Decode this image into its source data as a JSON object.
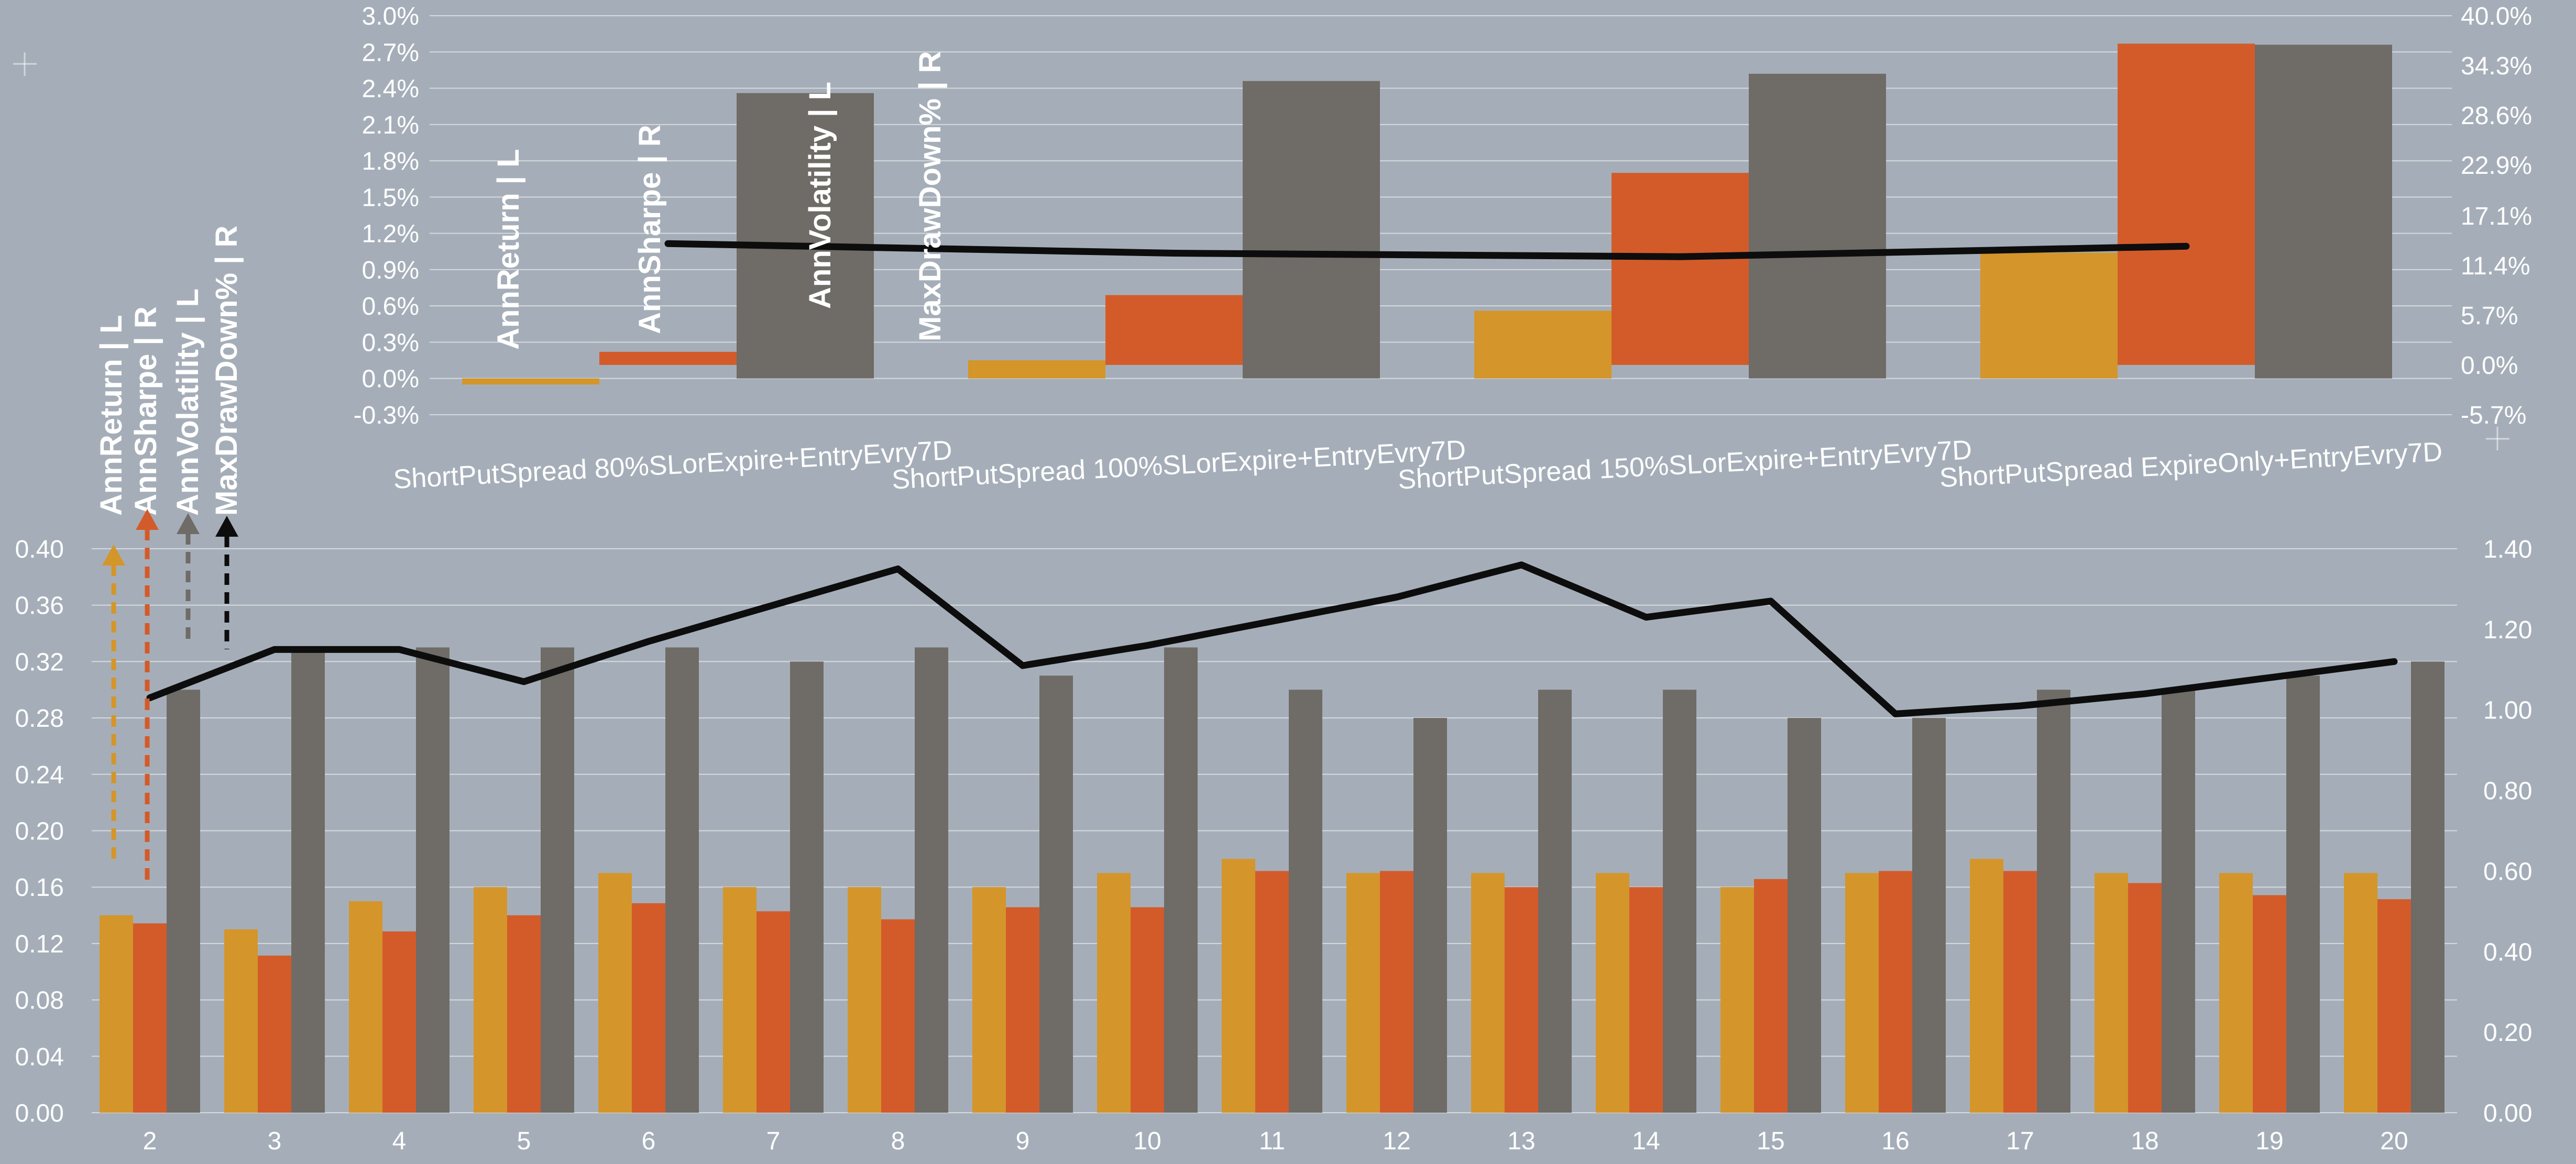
{
  "colors": {
    "background": "#a5aeb8",
    "ann_return": "#d4952a",
    "ann_sharpe": "#d35b2a",
    "ann_volatility": "#6f6b66",
    "max_drawdown": "#0d0d0d",
    "text": "#ffffff"
  },
  "chart_data": [
    {
      "type": "bar",
      "name": "top",
      "categories": [
        "ShortPutSpread 80%SLorExpire+EntryEvry7D",
        "ShortPutSpread 100%SLorExpire+EntryEvry7D",
        "ShortPutSpread 150%SLorExpire+EntryEvry7D",
        "ShortPutSpread ExpireOnly+EntryEvry7D"
      ],
      "left_axis": {
        "ticks": [
          "-0.3%",
          "0.0%",
          "0.3%",
          "0.6%",
          "0.9%",
          "1.2%",
          "1.5%",
          "1.8%",
          "2.1%",
          "2.4%",
          "2.7%",
          "3.0%"
        ],
        "range": [
          -0.3,
          3.0
        ]
      },
      "right_axis": {
        "ticks": [
          "-5.7%",
          "0.0%",
          "5.7%",
          "11.4%",
          "17.1%",
          "22.9%",
          "28.6%",
          "34.3%",
          "40.0%"
        ],
        "range": [
          -5.7,
          40.0
        ]
      },
      "series": [
        {
          "name": "AnnReturn | L",
          "axis": "left",
          "kind": "bar",
          "values": [
            -0.05,
            0.15,
            0.56,
            1.04
          ]
        },
        {
          "name": "AnnSharpe | R",
          "axis": "right",
          "kind": "bar",
          "values": [
            1.5,
            8.0,
            22.0,
            36.8
          ]
        },
        {
          "name": "AnnVolatility | L",
          "axis": "left",
          "kind": "bar",
          "values": [
            2.36,
            2.46,
            2.52,
            2.76
          ]
        },
        {
          "name": "MaxDrawDown% | R",
          "axis": "right",
          "kind": "line",
          "values": [
            13.9,
            12.8,
            12.4,
            13.6
          ]
        }
      ]
    },
    {
      "type": "bar",
      "name": "bottom",
      "categories": [
        "2",
        "3",
        "4",
        "5",
        "6",
        "7",
        "8",
        "9",
        "10",
        "11",
        "12",
        "13",
        "14",
        "15",
        "16",
        "17",
        "18",
        "19",
        "20"
      ],
      "left_axis": {
        "ticks": [
          "0.00",
          "0.04",
          "0.08",
          "0.12",
          "0.16",
          "0.20",
          "0.24",
          "0.28",
          "0.32",
          "0.36",
          "0.40"
        ],
        "range": [
          0,
          0.4
        ]
      },
      "right_axis": {
        "ticks": [
          "0.00",
          "0.20",
          "0.40",
          "0.60",
          "0.80",
          "1.00",
          "1.20",
          "1.40"
        ],
        "range": [
          0,
          1.4
        ]
      },
      "series": [
        {
          "name": "AnnReturn | L",
          "axis": "left",
          "kind": "bar",
          "values": [
            0.14,
            0.13,
            0.15,
            0.16,
            0.17,
            0.16,
            0.16,
            0.16,
            0.17,
            0.18,
            0.17,
            0.17,
            0.17,
            0.16,
            0.17,
            0.18,
            0.17,
            0.17,
            0.17
          ]
        },
        {
          "name": "AnnSharpe | R",
          "axis": "right",
          "kind": "bar",
          "values": [
            0.47,
            0.39,
            0.45,
            0.49,
            0.52,
            0.5,
            0.48,
            0.51,
            0.51,
            0.6,
            0.6,
            0.56,
            0.56,
            0.58,
            0.6,
            0.6,
            0.57,
            0.54,
            0.53
          ]
        },
        {
          "name": "AnnVolatility | L",
          "axis": "left",
          "kind": "bar",
          "values": [
            0.3,
            0.33,
            0.33,
            0.33,
            0.33,
            0.32,
            0.33,
            0.31,
            0.33,
            0.3,
            0.28,
            0.3,
            0.3,
            0.28,
            0.28,
            0.3,
            0.3,
            0.31,
            0.32
          ]
        },
        {
          "name": "MaxDrawDown% | R",
          "axis": "right",
          "kind": "line",
          "values": [
            1.03,
            1.15,
            1.15,
            1.07,
            1.17,
            1.26,
            1.35,
            1.11,
            1.16,
            1.22,
            1.28,
            1.36,
            1.23,
            1.27,
            0.99,
            1.01,
            1.04,
            1.08,
            1.12
          ]
        }
      ]
    }
  ]
}
